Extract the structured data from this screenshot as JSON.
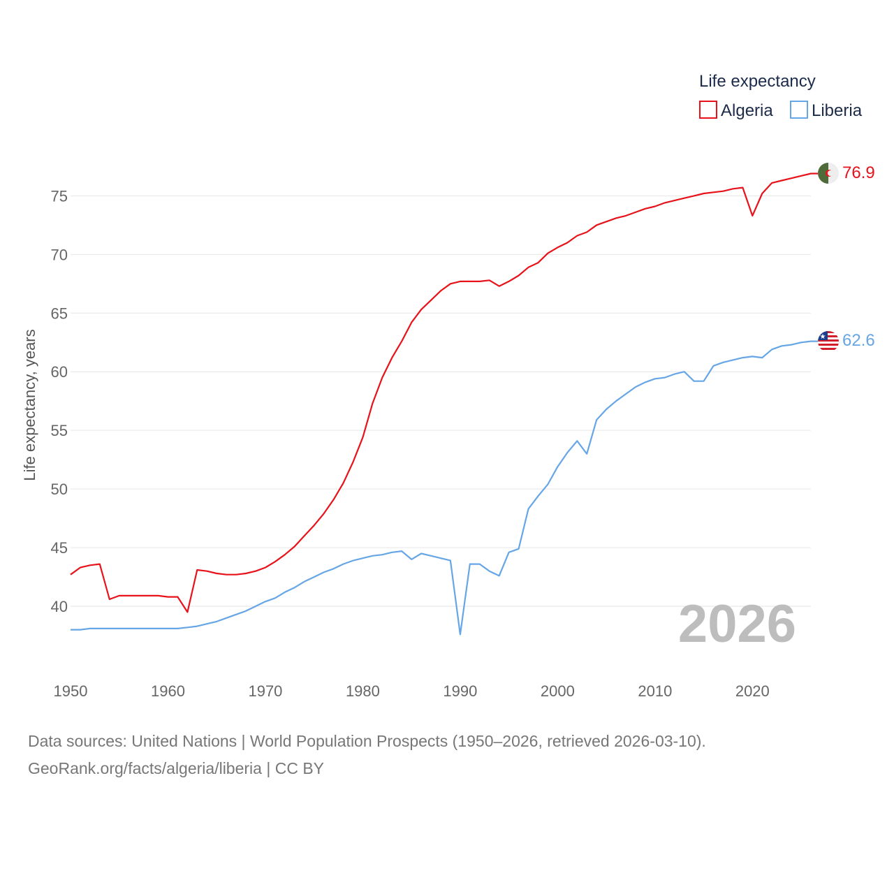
{
  "footer": {
    "sources": "Data sources: United Nations | World Population Prospects (1950–2026, retrieved 2026-03-10).",
    "credit": "GeoRank.org/facts/algeria/liberia | CC BY"
  },
  "chart_data": {
    "type": "line",
    "title": "Life expectancy",
    "xlabel": "",
    "ylabel": "Life expectancy, years",
    "year_watermark": "2026",
    "xlim": [
      1950,
      2026
    ],
    "ylim": [
      35,
      78
    ],
    "x_ticks": [
      1950,
      1960,
      1970,
      1980,
      1990,
      2000,
      2010,
      2020
    ],
    "y_ticks": [
      40,
      45,
      50,
      55,
      60,
      65,
      70,
      75
    ],
    "grid": true,
    "legend_position": "top-right",
    "x": [
      1950,
      1951,
      1952,
      1953,
      1954,
      1955,
      1956,
      1957,
      1958,
      1959,
      1960,
      1961,
      1962,
      1963,
      1964,
      1965,
      1966,
      1967,
      1968,
      1969,
      1970,
      1971,
      1972,
      1973,
      1974,
      1975,
      1976,
      1977,
      1978,
      1979,
      1980,
      1981,
      1982,
      1983,
      1984,
      1985,
      1986,
      1987,
      1988,
      1989,
      1990,
      1991,
      1992,
      1993,
      1994,
      1995,
      1996,
      1997,
      1998,
      1999,
      2000,
      2001,
      2002,
      2003,
      2004,
      2005,
      2006,
      2007,
      2008,
      2009,
      2010,
      2011,
      2012,
      2013,
      2014,
      2015,
      2016,
      2017,
      2018,
      2019,
      2020,
      2021,
      2022,
      2023,
      2024,
      2025,
      2026
    ],
    "series": [
      {
        "name": "Algeria",
        "color": "#e8121a",
        "flag": "algeria-flag",
        "end_label": "76.9",
        "values": [
          42.7,
          43.3,
          43.5,
          43.6,
          40.6,
          40.9,
          40.9,
          40.9,
          40.9,
          40.9,
          40.8,
          40.8,
          39.5,
          43.1,
          43.0,
          42.8,
          42.7,
          42.7,
          42.8,
          43.0,
          43.3,
          43.8,
          44.4,
          45.1,
          46.0,
          46.9,
          47.9,
          49.1,
          50.5,
          52.3,
          54.4,
          57.3,
          59.5,
          61.2,
          62.6,
          64.2,
          65.3,
          66.1,
          66.9,
          67.5,
          67.7,
          67.7,
          67.7,
          67.8,
          67.3,
          67.7,
          68.2,
          68.9,
          69.3,
          70.1,
          70.6,
          71.0,
          71.6,
          71.9,
          72.5,
          72.8,
          73.1,
          73.3,
          73.6,
          73.9,
          74.1,
          74.4,
          74.6,
          74.8,
          75.0,
          75.2,
          75.3,
          75.4,
          75.6,
          75.7,
          73.3,
          75.2,
          76.1,
          76.3,
          76.5,
          76.7,
          76.9
        ]
      },
      {
        "name": "Liberia",
        "color": "#66a6e6",
        "flag": "liberia-flag",
        "end_label": "62.6",
        "values": [
          38.0,
          38.0,
          38.1,
          38.1,
          38.1,
          38.1,
          38.1,
          38.1,
          38.1,
          38.1,
          38.1,
          38.1,
          38.2,
          38.3,
          38.5,
          38.7,
          39.0,
          39.3,
          39.6,
          40.0,
          40.4,
          40.7,
          41.2,
          41.6,
          42.1,
          42.5,
          42.9,
          43.2,
          43.6,
          43.9,
          44.1,
          44.3,
          44.4,
          44.6,
          44.7,
          44.0,
          44.5,
          44.3,
          44.1,
          43.9,
          37.6,
          43.6,
          43.6,
          43.0,
          42.6,
          44.6,
          44.9,
          48.3,
          49.4,
          50.4,
          51.9,
          53.1,
          54.1,
          53.0,
          55.9,
          56.8,
          57.5,
          58.1,
          58.7,
          59.1,
          59.4,
          59.5,
          59.8,
          60.0,
          59.2,
          59.2,
          60.5,
          60.8,
          61.0,
          61.2,
          61.3,
          61.2,
          61.9,
          62.2,
          62.3,
          62.5,
          62.6
        ]
      }
    ]
  }
}
